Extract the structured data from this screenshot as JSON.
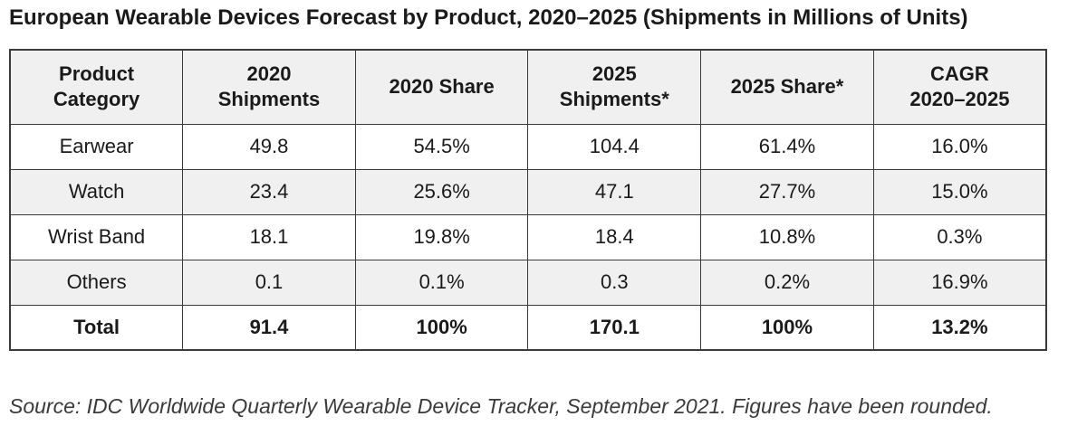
{
  "page": {
    "title": "European Wearable Devices Forecast by Product, 2020–2025 (Shipments in Millions of Units)",
    "source_note": "Source: IDC Worldwide Quarterly Wearable Device Tracker, September 2021. Figures have been rounded."
  },
  "colors": {
    "header_background": "#f0f0f0",
    "stripe_background": "#f0f0f0",
    "border": "#3b3b3b",
    "text": "#1a1a1a",
    "page_background": "#ffffff"
  },
  "chart_data": {
    "type": "table",
    "title": "European Wearable Devices Forecast by Product, 2020–2025 (Shipments in Millions of Units)",
    "columns": [
      "Product Category",
      "2020 Shipments",
      "2020 Share",
      "2025 Shipments*",
      "2025 Share*",
      "CAGR 2020–2025"
    ],
    "header_lines": [
      [
        "Product",
        "Category"
      ],
      [
        "2020",
        "Shipments"
      ],
      [
        "2020 Share",
        ""
      ],
      [
        "2025",
        "Shipments*"
      ],
      [
        "2025 Share*",
        ""
      ],
      [
        "CAGR",
        "2020–2025"
      ]
    ],
    "rows": [
      {
        "cells": [
          "Earwear",
          "49.8",
          "54.5%",
          "104.4",
          "61.4%",
          "16.0%"
        ]
      },
      {
        "cells": [
          "Watch",
          "23.4",
          "25.6%",
          "47.1",
          "27.7%",
          "15.0%"
        ]
      },
      {
        "cells": [
          "Wrist Band",
          "18.1",
          "19.8%",
          "18.4",
          "10.8%",
          "0.3%"
        ]
      },
      {
        "cells": [
          "Others",
          "0.1",
          "0.1%",
          "0.3",
          "0.2%",
          "16.9%"
        ]
      },
      {
        "cells": [
          "Total",
          "91.4",
          "100%",
          "170.1",
          "100%",
          "13.2%"
        ]
      }
    ],
    "footnote": "Source: IDC Worldwide Quarterly Wearable Device Tracker, September 2021. Figures have been rounded."
  }
}
